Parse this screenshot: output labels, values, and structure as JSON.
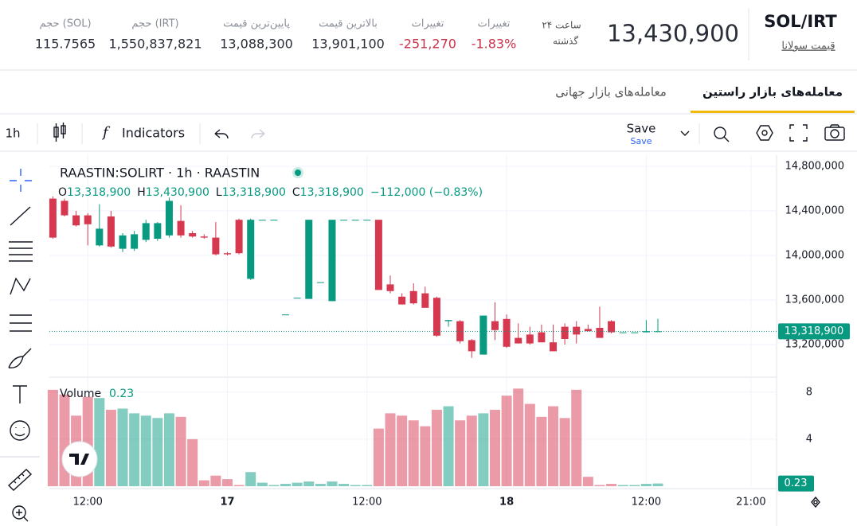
{
  "header": {
    "pair": "SOL/IRT",
    "name": "قیمت سولانا",
    "price": "13,430,900",
    "period": [
      "۲۴ ساعت",
      "گذشته"
    ],
    "stats": [
      {
        "label": "تغییرات",
        "value": "-1.83%"
      },
      {
        "label": "تغییرات",
        "value": "-251,270"
      },
      {
        "label": "بالاترین قیمت",
        "value": "13,901,100"
      },
      {
        "label": "پایین‌ترین قیمت",
        "value": "13,088,300"
      },
      {
        "label": "حجم (IRT)",
        "value": "1,550,837,821"
      },
      {
        "label": "حجم (SOL)",
        "value": "115.7565"
      }
    ]
  },
  "tabs": [
    "معامله‌های بازار راستین",
    "معامله‌های بازار جهانی"
  ],
  "toolbar": {
    "interval": "1h",
    "indicators": "Indicators",
    "save": "Save",
    "save_sub": "Save"
  },
  "chart_data": {
    "type": "candlestick",
    "title": "RAASTIN:SOLIRT · 1h · RAASTIN",
    "legend": [
      {
        "key": "O",
        "value": "13,318,900"
      },
      {
        "key": "H",
        "value": "13,430,900"
      },
      {
        "key": "L",
        "value": "13,318,900"
      },
      {
        "key": "C",
        "value": "13,318,900"
      }
    ],
    "change": "−112,000 (−0.83%)",
    "up_color": "#089981",
    "down_color": "#d63850",
    "ohlc": [
      [
        14510000,
        14530000,
        14150000,
        14160000
      ],
      [
        14490000,
        14510000,
        14350000,
        14360000
      ],
      [
        14360000,
        14400000,
        14260000,
        14270000
      ],
      [
        14360000,
        14380000,
        14090000,
        14280000
      ],
      [
        14090000,
        14460000,
        14080000,
        14240000
      ],
      [
        14350000,
        14400000,
        14070000,
        14080000
      ],
      [
        14060000,
        14200000,
        14030000,
        14180000
      ],
      [
        14060000,
        14220000,
        14040000,
        14190000
      ],
      [
        14140000,
        14320000,
        14120000,
        14290000
      ],
      [
        14150000,
        14300000,
        14130000,
        14290000
      ],
      [
        14180000,
        14520000,
        14160000,
        14490000
      ],
      [
        14310000,
        14450000,
        14160000,
        14180000
      ],
      [
        14200000,
        14220000,
        14160000,
        14170000
      ],
      [
        14170000,
        14190000,
        14150000,
        14160000
      ],
      [
        14160000,
        14300000,
        14000000,
        14010000
      ],
      [
        14020000,
        14030000,
        14000000,
        14010000
      ],
      [
        14320000,
        14330000,
        14010000,
        14020000
      ],
      [
        13790000,
        14330000,
        13780000,
        14320000
      ],
      [
        14320000,
        14320000,
        14320000,
        14320000
      ],
      [
        14320000,
        14320000,
        14320000,
        14320000
      ],
      [
        13470000,
        13470000,
        13470000,
        13470000
      ],
      [
        13620000,
        13620000,
        13620000,
        13620000
      ],
      [
        13610000,
        14320000,
        13610000,
        14320000
      ],
      [
        13760000,
        13760000,
        13760000,
        13760000
      ],
      [
        13590000,
        14320000,
        13590000,
        14320000
      ],
      [
        14320000,
        14320000,
        14320000,
        14320000
      ],
      [
        14320000,
        14320000,
        14320000,
        14320000
      ],
      [
        14320000,
        14320000,
        14320000,
        14320000
      ],
      [
        14320000,
        14320000,
        13690000,
        13690000
      ],
      [
        13740000,
        13820000,
        13660000,
        13680000
      ],
      [
        13630000,
        13660000,
        13560000,
        13560000
      ],
      [
        13680000,
        13750000,
        13560000,
        13570000
      ],
      [
        13660000,
        13720000,
        13530000,
        13530000
      ],
      [
        13620000,
        13630000,
        13270000,
        13280000
      ],
      [
        13410000,
        13420000,
        13360000,
        13420000
      ],
      [
        13410000,
        13420000,
        13210000,
        13230000
      ],
      [
        13240000,
        13250000,
        13080000,
        13140000
      ],
      [
        13110000,
        13460000,
        13110000,
        13460000
      ],
      [
        13410000,
        13580000,
        13240000,
        13330000
      ],
      [
        13430000,
        13470000,
        13170000,
        13180000
      ],
      [
        13260000,
        13390000,
        13210000,
        13210000
      ],
      [
        13290000,
        13360000,
        13200000,
        13210000
      ],
      [
        13310000,
        13380000,
        13220000,
        13220000
      ],
      [
        13220000,
        13380000,
        13140000,
        13140000
      ],
      [
        13360000,
        13390000,
        13200000,
        13250000
      ],
      [
        13360000,
        13410000,
        13210000,
        13290000
      ],
      [
        13340000,
        13380000,
        13320000,
        13320000
      ],
      [
        13350000,
        13540000,
        13260000,
        13260000
      ],
      [
        13410000,
        13420000,
        13300000,
        13310000
      ],
      [
        13310000,
        13310000,
        13310000,
        13310000
      ],
      [
        13310000,
        13310000,
        13310000,
        13310000
      ],
      [
        13310000,
        13420000,
        13310000,
        13320000
      ],
      [
        13318900,
        13430900,
        13318900,
        13318900
      ]
    ],
    "ylim": [
      12900000,
      14900000
    ],
    "yticks": [
      {
        "value": 13200000,
        "label": "13,200,000"
      },
      {
        "value": 13600000,
        "label": "13,600,000"
      },
      {
        "value": 14000000,
        "label": "14,000,000"
      },
      {
        "value": 14400000,
        "label": "14,400,000"
      },
      {
        "value": 14800000,
        "label": "14,800,000"
      }
    ],
    "xlim": [
      -0.3,
      62.2
    ],
    "xticks": [
      {
        "value": 3,
        "label": "12:00"
      },
      {
        "value": 15,
        "label": "17"
      },
      {
        "value": 27,
        "label": "12:00"
      },
      {
        "value": 39,
        "label": "18"
      },
      {
        "value": 51,
        "label": "12:00"
      },
      {
        "value": 60,
        "label": "21:00"
      }
    ],
    "last_price": {
      "value": 13318900,
      "label": "13,318,900"
    },
    "volume": {
      "name": "Volume",
      "label": "0.23",
      "values": [
        8.2,
        7.8,
        6.0,
        7.6,
        7.5,
        6.5,
        6.6,
        6.2,
        6.0,
        5.8,
        6.2,
        5.9,
        4.0,
        0.5,
        0.9,
        0.6,
        0.1,
        1.2,
        0.3,
        0.1,
        0.2,
        0.3,
        0.4,
        0.2,
        0.4,
        0.2,
        0.1,
        0.1,
        4.9,
        6.2,
        6.0,
        5.6,
        5.1,
        6.5,
        6.8,
        5.6,
        6.0,
        6.2,
        6.5,
        7.7,
        8.3,
        7.0,
        5.9,
        6.8,
        5.8,
        8.2,
        0.8,
        0.1,
        0.2,
        0.1,
        0.1,
        0.2,
        0.23
      ],
      "ylim": [
        0,
        9
      ],
      "yticks": [
        4,
        8
      ],
      "last": 0.23
    }
  }
}
